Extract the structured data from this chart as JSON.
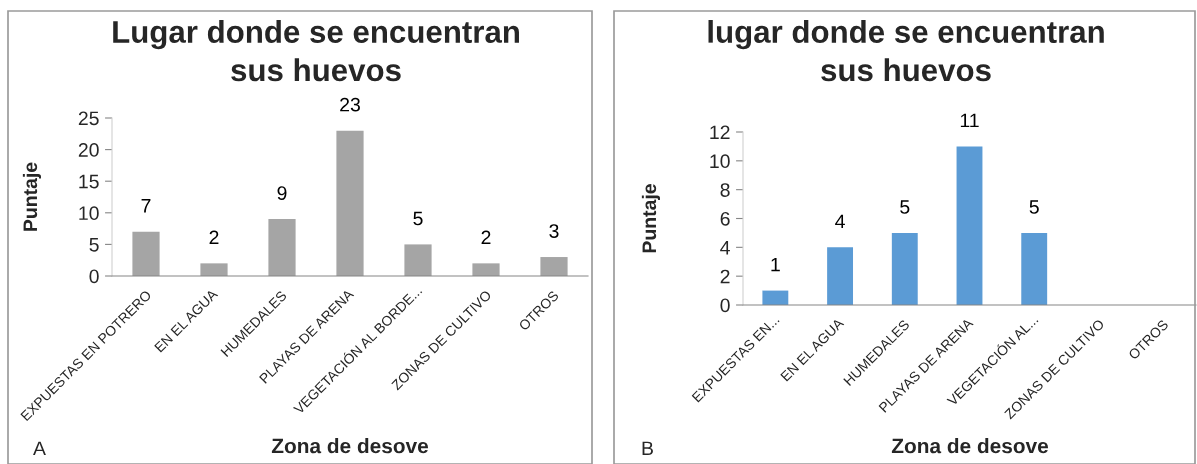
{
  "chart_data": [
    {
      "type": "bar",
      "title": "Lugar donde se encuentran\nsus huevos",
      "xlabel": "Zona de desove",
      "ylabel": "Puntaje",
      "categories": [
        "EXPUESTAS EN POTRERO",
        "EN EL AGUA",
        "HUMEDALES",
        "PLAYAS DE ARENA",
        "VEGETACIÓN AL BORDE...",
        "ZONAS DE CULTIVO",
        "OTROS"
      ],
      "values": [
        7,
        2,
        9,
        23,
        5,
        2,
        3
      ],
      "color": "#a5a5a5",
      "ylim": [
        0,
        25
      ],
      "yticks": [
        0,
        5,
        10,
        15,
        20,
        25
      ],
      "data_labels": true,
      "annotations": [
        "A"
      ]
    },
    {
      "type": "bar",
      "title": "lugar donde se encuentran\nsus huevos",
      "xlabel": "Zona de desove",
      "ylabel": "Puntaje",
      "categories": [
        "EXPUESTAS EN...",
        "EN EL AGUA",
        "HUMEDALES",
        "PLAYAS DE ARENA",
        "VEGETACIÓN AL...",
        "ZONAS DE CULTIVO",
        "OTROS"
      ],
      "values": [
        1,
        4,
        5,
        11,
        5,
        null,
        null
      ],
      "color": "#5b9bd5",
      "ylim": [
        0,
        12
      ],
      "yticks": [
        0,
        2,
        4,
        6,
        8,
        10,
        12
      ],
      "data_labels": true,
      "annotations": [
        "B"
      ]
    }
  ]
}
